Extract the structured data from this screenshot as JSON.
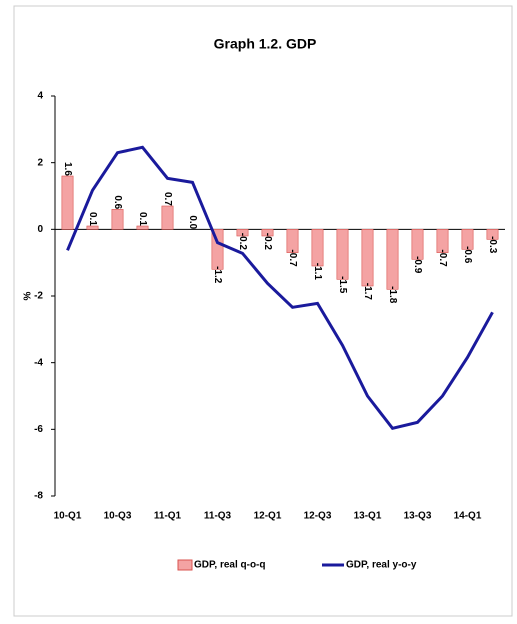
{
  "chart_data": {
    "type": "bar-line",
    "title": "Graph 1.2. GDP",
    "y_label": "%",
    "categories": [
      "10-Q1",
      null,
      "10-Q3",
      null,
      "11-Q1",
      null,
      "11-Q3",
      null,
      "12-Q1",
      null,
      "12-Q3",
      null,
      "13-Q1",
      null,
      "13-Q3",
      null,
      "14-Q1",
      null
    ],
    "series": [
      {
        "name": "GDP, real q-o-q",
        "type": "bar",
        "color": "#f4a3a3",
        "edge": "#d9534f",
        "values": [
          1.6,
          0.1,
          0.6,
          0.1,
          0.7,
          0.0,
          -1.2,
          -0.2,
          -0.2,
          -0.7,
          -1.1,
          -1.5,
          -1.7,
          -1.8,
          -0.9,
          -0.7,
          -0.6,
          -0.3
        ],
        "value_labels": [
          "1.6",
          "0.1",
          "0.6",
          "0.1",
          "0.7",
          "0.0",
          "-1.2",
          "-0.2",
          "-0.2",
          "-0.7",
          "-1.1",
          "-1.5",
          "-1.7",
          "-1.8",
          "-0.9",
          "-0.7",
          "-0.6",
          "-0.3"
        ]
      },
      {
        "name": "GDP, real y-o-y",
        "type": "line",
        "color": "#1a1a9c",
        "values": [
          -0.63,
          1.17,
          2.3,
          2.46,
          1.53,
          1.41,
          -0.4,
          -0.72,
          -1.62,
          -2.34,
          -2.22,
          -3.48,
          -5.0,
          -5.97,
          -5.79,
          -5.0,
          -3.84,
          -2.49
        ]
      }
    ],
    "ylim": [
      -8,
      4
    ],
    "yticks": [
      -8,
      -6,
      -4,
      -2,
      0,
      2,
      4
    ]
  }
}
